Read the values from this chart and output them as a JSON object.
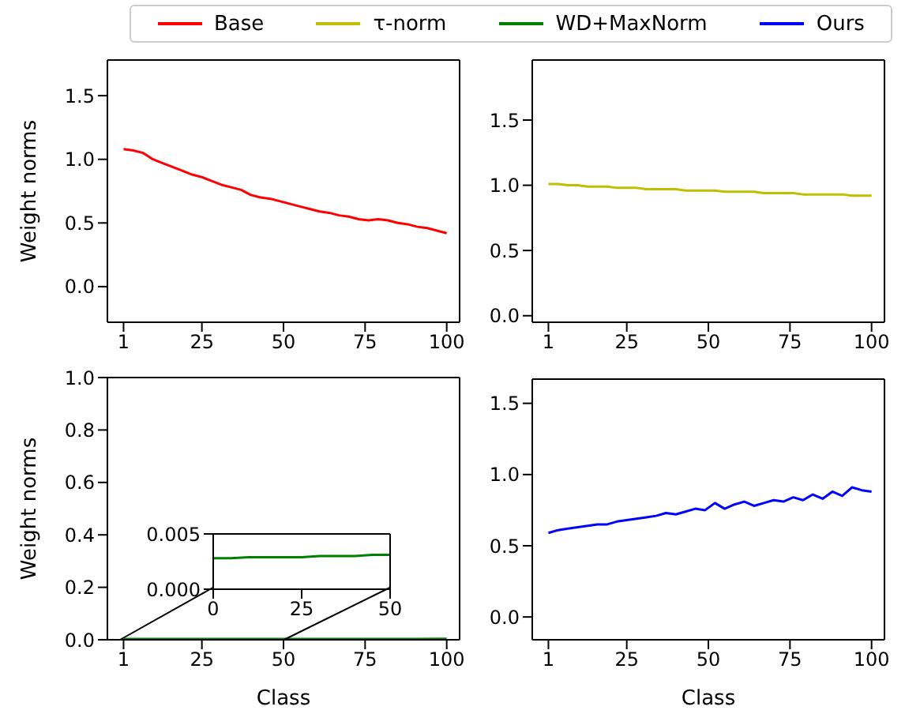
{
  "chart_data": [
    {
      "type": "line",
      "ylabel": "Weight norms",
      "legend": "top",
      "xlim": [
        -3.95,
        103.95
      ],
      "xticks": [
        1,
        25,
        50,
        75,
        100
      ],
      "ylim": [
        -0.28,
        1.78
      ],
      "yticks": [
        {
          "value": 0,
          "label": "0.0"
        },
        {
          "value": 0.5,
          "label": "0.5"
        },
        {
          "value": 1,
          "label": "1.0"
        },
        {
          "value": 1.5,
          "label": "1.5"
        }
      ],
      "series": [
        {
          "name": "Base",
          "color": "#ff0000",
          "x": [
            1,
            4,
            7,
            10,
            13,
            16,
            19,
            22,
            25,
            28,
            31,
            34,
            37,
            40,
            43,
            46,
            49,
            52,
            55,
            58,
            61,
            64,
            67,
            70,
            73,
            76,
            79,
            82,
            85,
            88,
            91,
            94,
            97,
            100
          ],
          "values": [
            1.08,
            1.07,
            1.05,
            1.0,
            0.97,
            0.94,
            0.91,
            0.88,
            0.86,
            0.83,
            0.8,
            0.78,
            0.76,
            0.72,
            0.7,
            0.69,
            0.67,
            0.65,
            0.63,
            0.61,
            0.59,
            0.58,
            0.56,
            0.55,
            0.53,
            0.52,
            0.53,
            0.52,
            0.5,
            0.49,
            0.47,
            0.46,
            0.44,
            0.42
          ]
        }
      ]
    },
    {
      "type": "line",
      "legend": "top",
      "xlim": [
        -3.95,
        103.95
      ],
      "xticks": [
        1,
        25,
        50,
        75,
        100
      ],
      "ylim": [
        -0.05,
        1.96
      ],
      "yticks": [
        {
          "value": 0,
          "label": "0.0"
        },
        {
          "value": 0.5,
          "label": "0.5"
        },
        {
          "value": 1,
          "label": "1.0"
        },
        {
          "value": 1.5,
          "label": "1.5"
        }
      ],
      "series": [
        {
          "name": "τ-norm",
          "color": "#bfbf00",
          "x": [
            1,
            4,
            7,
            10,
            13,
            16,
            19,
            22,
            25,
            28,
            31,
            34,
            37,
            40,
            43,
            46,
            49,
            52,
            55,
            58,
            61,
            64,
            67,
            70,
            73,
            76,
            79,
            82,
            85,
            88,
            91,
            94,
            97,
            100
          ],
          "values": [
            1.01,
            1.01,
            1.0,
            1.0,
            0.99,
            0.99,
            0.99,
            0.98,
            0.98,
            0.98,
            0.97,
            0.97,
            0.97,
            0.97,
            0.96,
            0.96,
            0.96,
            0.96,
            0.95,
            0.95,
            0.95,
            0.95,
            0.94,
            0.94,
            0.94,
            0.94,
            0.93,
            0.93,
            0.93,
            0.93,
            0.93,
            0.92,
            0.92,
            0.92
          ]
        }
      ]
    },
    {
      "type": "line",
      "xlabel": "Class",
      "ylabel": "Weight norms",
      "legend": "top",
      "xlim": [
        -3.95,
        103.95
      ],
      "xticks": [
        1,
        25,
        50,
        75,
        100
      ],
      "ylim": [
        0,
        1
      ],
      "yticks": [
        {
          "value": 0,
          "label": "0.0"
        },
        {
          "value": 0.2,
          "label": "0.2"
        },
        {
          "value": 0.4,
          "label": "0.4"
        },
        {
          "value": 0.6,
          "label": "0.6"
        },
        {
          "value": 0.8,
          "label": "0.8"
        },
        {
          "value": 1,
          "label": "1.0"
        }
      ],
      "series": [
        {
          "name": "WD+MaxNorm",
          "color": "#008000",
          "x": [
            1,
            10,
            20,
            30,
            40,
            50,
            60,
            70,
            80,
            90,
            100
          ],
          "values": [
            0.0028,
            0.0028,
            0.0029,
            0.0029,
            0.003,
            0.0031,
            0.0031,
            0.0032,
            0.0033,
            0.0033,
            0.0034
          ]
        }
      ]
    },
    {
      "type": "line",
      "xlabel": "Class",
      "legend": "top",
      "xlim": [
        -3.95,
        103.95
      ],
      "xticks": [
        1,
        25,
        50,
        75,
        100
      ],
      "ylim": [
        -0.16,
        1.67
      ],
      "yticks": [
        {
          "value": 0,
          "label": "0.0"
        },
        {
          "value": 0.5,
          "label": "0.5"
        },
        {
          "value": 1,
          "label": "1.0"
        },
        {
          "value": 1.5,
          "label": "1.5"
        }
      ],
      "series": [
        {
          "name": "Ours",
          "color": "#0000ff",
          "x": [
            1,
            4,
            7,
            10,
            13,
            16,
            19,
            22,
            25,
            28,
            31,
            34,
            37,
            40,
            43,
            46,
            49,
            52,
            55,
            58,
            61,
            64,
            67,
            70,
            73,
            76,
            79,
            82,
            85,
            88,
            91,
            94,
            97,
            100
          ],
          "values": [
            0.59,
            0.61,
            0.62,
            0.63,
            0.64,
            0.65,
            0.65,
            0.67,
            0.68,
            0.69,
            0.7,
            0.71,
            0.73,
            0.72,
            0.74,
            0.76,
            0.75,
            0.8,
            0.76,
            0.79,
            0.81,
            0.78,
            0.8,
            0.82,
            0.81,
            0.84,
            0.82,
            0.86,
            0.83,
            0.88,
            0.85,
            0.91,
            0.89,
            0.88
          ]
        }
      ]
    },
    {
      "type": "line",
      "xlim": [
        0,
        50
      ],
      "xticks": [
        0,
        25,
        50
      ],
      "ylim": [
        0,
        0.005
      ],
      "yticks": [
        {
          "value": 0,
          "label": "0.000"
        },
        {
          "value": 0.005,
          "label": "0.005"
        }
      ],
      "series": [
        {
          "color": "#008000",
          "x": [
            0,
            5,
            10,
            15,
            20,
            25,
            30,
            35,
            40,
            45,
            50
          ],
          "values": [
            0.0028,
            0.0028,
            0.0029,
            0.0029,
            0.0029,
            0.0029,
            0.003,
            0.003,
            0.003,
            0.0031,
            0.0031
          ]
        }
      ]
    }
  ]
}
